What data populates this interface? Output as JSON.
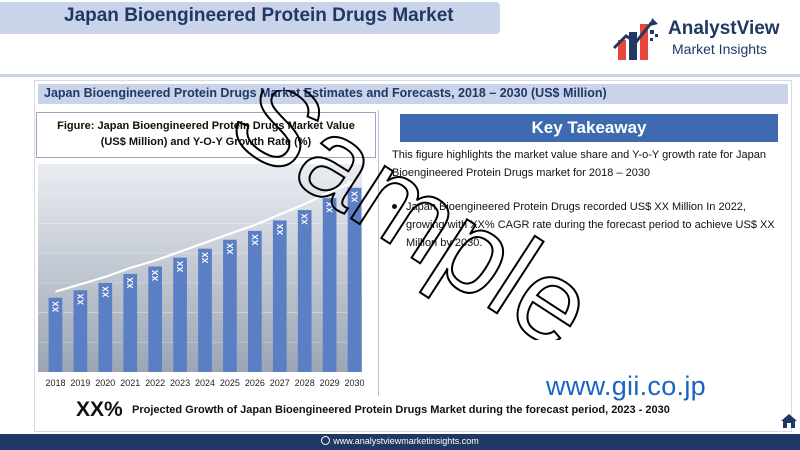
{
  "header": {
    "title": "Japan Bioengineered Protein Drugs Market",
    "logo_name": "AnalystView",
    "logo_sub": "Market Insights"
  },
  "subtitle": "Japan Bioengineered Protein Drugs Market Estimates and Forecasts, 2018 – 2030 (US$ Million)",
  "figure_caption": {
    "line1": "Figure: Japan Bioengineered Protein Drugs Market Value",
    "line2": "(US$ Million) and Y-O-Y Growth Rate (%)"
  },
  "chart_data": {
    "type": "bar",
    "categories": [
      "2018",
      "2019",
      "2020",
      "2021",
      "2022",
      "2023",
      "2024",
      "2025",
      "2026",
      "2027",
      "2028",
      "2029",
      "2030"
    ],
    "values": [
      50,
      55,
      60,
      66,
      71,
      77,
      83,
      89,
      95,
      102,
      109,
      117,
      124
    ],
    "data_labels": [
      "XX",
      "XX",
      "XX",
      "XX",
      "XX",
      "XX",
      "XX",
      "XX",
      "XX",
      "XX",
      "XX",
      "XX",
      "XX"
    ],
    "trend_line": true,
    "ylim": [
      0,
      140
    ],
    "grid": true,
    "colors": {
      "bar": "#5b7fc4",
      "trend": "#ffffff",
      "background_top": "#eaedf2",
      "background_bottom": "#9ba5b4"
    }
  },
  "key_takeaway": {
    "title": "Key Takeaway",
    "paragraph": "This figure highlights the market value share and Y-o-Y growth rate for Japan Bioengineered Protein Drugs market for 2018 – 2030",
    "bullet": "Japan Bioengineered Protein Drugs recorded US$ XX Million In 2022, growing with XX% CAGR rate during the forecast period to achieve US$ XX Million by 2030."
  },
  "growth": {
    "value": "XX%",
    "label": "Projected Growth of Japan Bioengineered Protein Drugs Market during the forecast period, 2023 - 2030"
  },
  "footer": {
    "url": "www.analystviewmarketinsights.com"
  },
  "overlay": {
    "gii": "www.gii.co.jp",
    "watermark": "Sample"
  },
  "colors": {
    "navy": "#1f3864",
    "accent_blue": "#3e6bb0",
    "light_band": "#c9d4ea",
    "gii_blue": "#1a63c2"
  }
}
